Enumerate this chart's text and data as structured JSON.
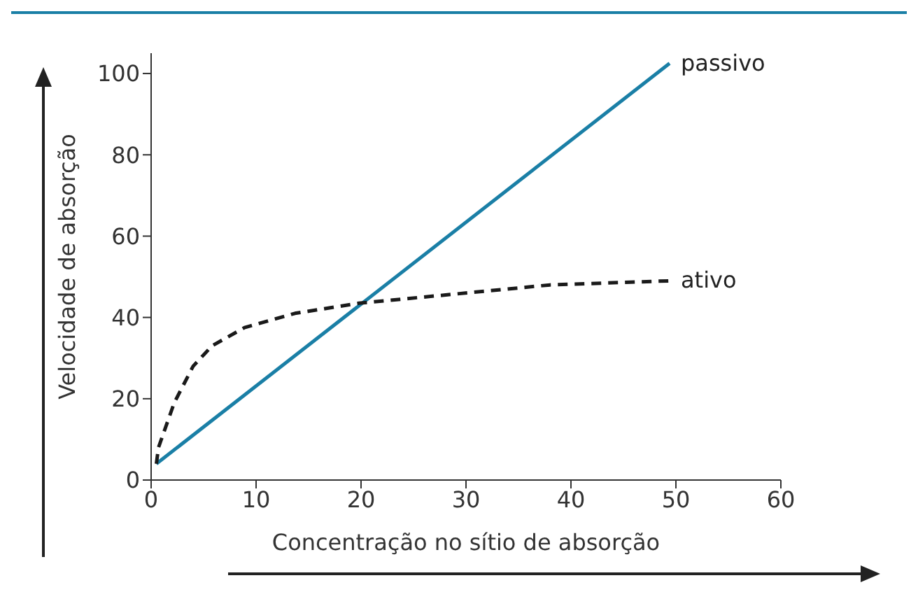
{
  "chart_data": {
    "type": "line",
    "xlabel": "Concentração no sítio de absorção",
    "ylabel": "Velocidade de absorção",
    "xlim": [
      0,
      60
    ],
    "xticks": [
      0,
      10,
      20,
      30,
      40,
      50,
      60
    ],
    "ylim": [
      0,
      105
    ],
    "yticks": [
      0,
      20,
      40,
      60,
      80,
      100
    ],
    "grid": false,
    "legend": false,
    "marker": "none",
    "series": [
      {
        "name": "passivo",
        "color": "#1a7fa6",
        "line_style": "solid",
        "x": [
          0.5,
          49.4
        ],
        "values": [
          4,
          102.5
        ]
      },
      {
        "name": "ativo",
        "color": "#1a1a1a",
        "line_style": "dashed",
        "x": [
          0.5,
          0.7,
          2.2,
          4,
          5.8,
          8.9,
          13.7,
          19.8,
          25.9,
          32,
          38,
          49.4
        ],
        "values": [
          4,
          8,
          19,
          28,
          33,
          37.5,
          41,
          43.5,
          45,
          46.5,
          48,
          49
        ]
      }
    ]
  }
}
